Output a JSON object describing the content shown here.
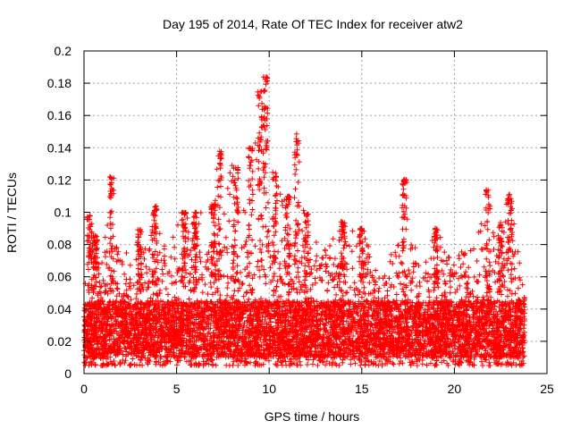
{
  "chart_data": {
    "type": "scatter",
    "title": "Day 195 of 2014, Rate Of TEC Index for receiver atw2",
    "xlabel": "GPS time / hours",
    "ylabel": "ROTI / TECUs",
    "xlim": [
      0,
      25
    ],
    "ylim": [
      0,
      0.2
    ],
    "xticks": [
      0,
      5,
      10,
      15,
      20,
      25
    ],
    "yticks": [
      0,
      0.02,
      0.04,
      0.06,
      0.08,
      0.1,
      0.12,
      0.14,
      0.16,
      0.18,
      0.2
    ],
    "xtick_labels": [
      "0",
      "5",
      "10",
      "15",
      "20",
      "25"
    ],
    "ytick_labels": [
      "0",
      "0.02",
      "0.04",
      "0.06",
      "0.08",
      "0.1",
      "0.12",
      "0.14",
      "0.16",
      "0.18",
      "0.2"
    ],
    "grid": true,
    "marker": "+",
    "color": "#ff0000",
    "data_x_range": [
      0,
      23.8
    ],
    "envelope": [
      {
        "x": 0.0,
        "upper": 0.05
      },
      {
        "x": 0.3,
        "upper": 0.098
      },
      {
        "x": 0.6,
        "upper": 0.086
      },
      {
        "x": 1.0,
        "upper": 0.075
      },
      {
        "x": 1.5,
        "upper": 0.122
      },
      {
        "x": 2.0,
        "upper": 0.07
      },
      {
        "x": 3.0,
        "upper": 0.09
      },
      {
        "x": 3.8,
        "upper": 0.104
      },
      {
        "x": 4.5,
        "upper": 0.085
      },
      {
        "x": 5.4,
        "upper": 0.1
      },
      {
        "x": 6.0,
        "upper": 0.1
      },
      {
        "x": 7.0,
        "upper": 0.105
      },
      {
        "x": 7.3,
        "upper": 0.138
      },
      {
        "x": 8.2,
        "upper": 0.128
      },
      {
        "x": 9.0,
        "upper": 0.14
      },
      {
        "x": 9.5,
        "upper": 0.175
      },
      {
        "x": 9.8,
        "upper": 0.184
      },
      {
        "x": 10.3,
        "upper": 0.125
      },
      {
        "x": 11.0,
        "upper": 0.11
      },
      {
        "x": 11.5,
        "upper": 0.149
      },
      {
        "x": 12.0,
        "upper": 0.1
      },
      {
        "x": 13.0,
        "upper": 0.078
      },
      {
        "x": 14.0,
        "upper": 0.095
      },
      {
        "x": 15.0,
        "upper": 0.09
      },
      {
        "x": 16.0,
        "upper": 0.06
      },
      {
        "x": 17.0,
        "upper": 0.085
      },
      {
        "x": 17.3,
        "upper": 0.121
      },
      {
        "x": 18.0,
        "upper": 0.075
      },
      {
        "x": 19.0,
        "upper": 0.09
      },
      {
        "x": 20.0,
        "upper": 0.07
      },
      {
        "x": 21.0,
        "upper": 0.085
      },
      {
        "x": 21.8,
        "upper": 0.114
      },
      {
        "x": 22.5,
        "upper": 0.095
      },
      {
        "x": 23.0,
        "upper": 0.111
      },
      {
        "x": 23.8,
        "upper": 0.05
      }
    ],
    "typical_lower": 0.005,
    "dense_band": [
      0.01,
      0.045
    ]
  }
}
